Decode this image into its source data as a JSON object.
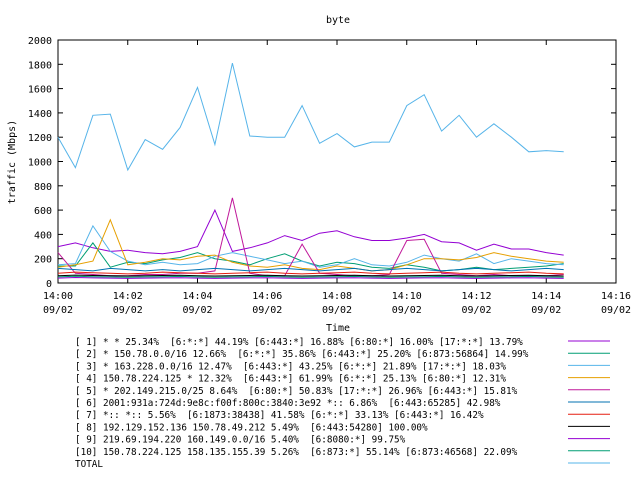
{
  "chart_data": {
    "type": "line",
    "title": "byte",
    "xlabel": "Time",
    "ylabel": "traffic (Mbps)",
    "ylim": [
      0,
      2000
    ],
    "yticks": [
      0,
      200,
      400,
      600,
      800,
      1000,
      1200,
      1400,
      1600,
      1800,
      2000
    ],
    "xlim": [
      "14:00",
      "14:16"
    ],
    "xticks": [
      {
        "time": "14:00",
        "date": "09/02"
      },
      {
        "time": "14:02",
        "date": "09/02"
      },
      {
        "time": "14:04",
        "date": "09/02"
      },
      {
        "time": "14:06",
        "date": "09/02"
      },
      {
        "time": "14:08",
        "date": "09/02"
      },
      {
        "time": "14:10",
        "date": "09/02"
      },
      {
        "time": "14:12",
        "date": "09/02"
      },
      {
        "time": "14:14",
        "date": "09/02"
      },
      {
        "time": "14:16",
        "date": "09/02"
      }
    ],
    "x": [
      "14:00:00",
      "14:00:30",
      "14:01:00",
      "14:01:30",
      "14:02:00",
      "14:02:30",
      "14:03:00",
      "14:03:30",
      "14:04:00",
      "14:04:30",
      "14:05:00",
      "14:05:30",
      "14:06:00",
      "14:06:30",
      "14:07:00",
      "14:07:30",
      "14:08:00",
      "14:08:30",
      "14:09:00",
      "14:09:30",
      "14:10:00",
      "14:10:30",
      "14:11:00",
      "14:11:30",
      "14:12:00",
      "14:12:30",
      "14:13:00",
      "14:13:30",
      "14:14:00",
      "14:14:30"
    ],
    "grid": false,
    "legend_position": "bottom",
    "series": [
      {
        "name": "[ 1] * * 25.34%  [6:*:*] 44.19% [6:443:*] 16.88% [6:80:*] 16.00% [17:*:*] 13.79%",
        "color": "#9400d3",
        "values": [
          300,
          330,
          290,
          260,
          270,
          250,
          240,
          260,
          300,
          600,
          260,
          290,
          330,
          390,
          350,
          410,
          430,
          380,
          350,
          350,
          370,
          400,
          340,
          330,
          270,
          320,
          280,
          280,
          250,
          230
        ]
      },
      {
        "name": "[ 2] * 150.78.0.0/16 12.66%  [6:*:*] 35.86% [6:443:*] 25.20% [6:873:56864] 14.99%",
        "color": "#009e73",
        "values": [
          140,
          140,
          330,
          130,
          170,
          160,
          190,
          210,
          250,
          200,
          180,
          150,
          200,
          240,
          180,
          140,
          170,
          160,
          130,
          120,
          150,
          130,
          100,
          110,
          130,
          110,
          120,
          130,
          140,
          160
        ]
      },
      {
        "name": "[ 3] * 163.228.0.0/16 12.47%  [6:443:*] 43.25% [6:*:*] 21.89% [17:*:*] 18.03%",
        "color": "#56b4e9",
        "values": [
          150,
          160,
          470,
          260,
          180,
          150,
          170,
          150,
          160,
          220,
          250,
          220,
          190,
          160,
          180,
          130,
          150,
          200,
          150,
          140,
          170,
          230,
          200,
          180,
          240,
          160,
          200,
          180,
          160,
          150
        ]
      },
      {
        "name": "[ 4] 150.78.224.125 * 12.32%  [6:443:*] 61.99% [6:*:*] 25.13% [6:80:*] 12.31%",
        "color": "#e69f00",
        "values": [
          130,
          150,
          180,
          520,
          150,
          170,
          200,
          190,
          220,
          230,
          170,
          140,
          130,
          150,
          120,
          110,
          140,
          120,
          100,
          110,
          150,
          200,
          200,
          190,
          210,
          250,
          220,
          200,
          180,
          170
        ]
      },
      {
        "name": "[ 5] * 202.149.215.0/25 8.64%  [6:80:*] 50.83% [17:*:*] 26.96% [6:443:*] 15.81%",
        "color": "#c0189a",
        "values": [
          250,
          80,
          70,
          60,
          60,
          70,
          70,
          80,
          80,
          100,
          700,
          80,
          60,
          60,
          320,
          80,
          70,
          60,
          60,
          70,
          350,
          360,
          80,
          70,
          60,
          70,
          60,
          60,
          60,
          70
        ]
      },
      {
        "name": "[ 6] 2001:931a:724d:9e8c:f00f:800c:3840:3e92 *:: 6.86%  [6:443:65285] 42.98%",
        "color": "#0072b2",
        "values": [
          120,
          110,
          100,
          120,
          110,
          100,
          110,
          100,
          110,
          120,
          110,
          100,
          110,
          120,
          110,
          100,
          110,
          120,
          100,
          110,
          120,
          110,
          100,
          110,
          120,
          110,
          100,
          110,
          120,
          110
        ]
      },
      {
        "name": "[ 7] *:: *:: 5.56%  [6:1873:38438] 41.58% [6:*:*] 33.13% [6:443:*] 16.42%",
        "color": "#e51e10",
        "values": [
          80,
          90,
          85,
          80,
          75,
          80,
          90,
          85,
          80,
          75,
          80,
          85,
          90,
          80,
          75,
          80,
          85,
          90,
          80,
          75,
          80,
          85,
          90,
          80,
          75,
          80,
          85,
          90,
          80,
          75
        ]
      },
      {
        "name": "[ 8] 192.129.152.136 150.78.49.212 5.49%  [6:443:54280] 100.00%",
        "color": "#000000",
        "values": [
          60,
          65,
          62,
          60,
          58,
          60,
          62,
          64,
          60,
          58,
          60,
          62,
          64,
          60,
          58,
          60,
          62,
          64,
          60,
          58,
          60,
          62,
          64,
          60,
          58,
          60,
          62,
          64,
          60,
          58
        ]
      },
      {
        "name": "[ 9] 219.69.194.220 160.149.0.0/16 5.40%  [6:8080:*] 99.75%",
        "color": "#9400d3",
        "values": [
          40,
          45,
          42,
          40,
          38,
          40,
          42,
          44,
          40,
          38,
          40,
          42,
          44,
          40,
          38,
          40,
          42,
          44,
          40,
          38,
          40,
          42,
          44,
          40,
          38,
          40,
          42,
          44,
          40,
          38
        ]
      },
      {
        "name": "[10] 150.78.224.125 158.135.155.39 5.26%  [6:873:*] 55.14% [6:873:46568] 22.09%",
        "color": "#009e73",
        "values": [
          50,
          55,
          52,
          50,
          48,
          50,
          52,
          54,
          50,
          48,
          50,
          52,
          54,
          50,
          48,
          50,
          52,
          54,
          50,
          48,
          50,
          52,
          54,
          50,
          48,
          50,
          52,
          54,
          50,
          48
        ]
      },
      {
        "name": "TOTAL",
        "color": "#56b4e9",
        "values": [
          1200,
          950,
          1380,
          1390,
          930,
          1180,
          1100,
          1280,
          1610,
          1140,
          1810,
          1210,
          1200,
          1200,
          1460,
          1150,
          1230,
          1120,
          1160,
          1160,
          1460,
          1550,
          1250,
          1380,
          1200,
          1310,
          1200,
          1080,
          1090,
          1080
        ]
      }
    ]
  }
}
